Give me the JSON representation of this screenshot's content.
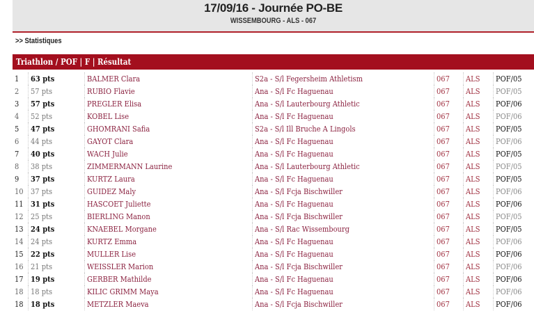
{
  "header": {
    "title": "17/09/16 - Journée PO-BE",
    "subtitle": "WISSEMBOURG - ALS - 067"
  },
  "breadcrumb": ">> Statistiques",
  "section_title": "Triathlon / POF | F | Résultat",
  "colors": {
    "accent": "#a30f1e",
    "name_text": "#8b2240"
  },
  "rows": [
    {
      "rank": "1",
      "pts": "63 pts",
      "name": "BALMER Clara",
      "club": "S2a - S/l Fegersheim Athletism",
      "dep": "067",
      "reg": "ALS",
      "cat": "POF/05"
    },
    {
      "rank": "2",
      "pts": "57 pts",
      "name": "RUBIO Flavie",
      "club": "Ana - S/l Fc Haguenau",
      "dep": "067",
      "reg": "ALS",
      "cat": "POF/05"
    },
    {
      "rank": "3",
      "pts": "57 pts",
      "name": "PREGLER Elisa",
      "club": "Ana - S/l Lauterbourg Athletic",
      "dep": "067",
      "reg": "ALS",
      "cat": "POF/06"
    },
    {
      "rank": "4",
      "pts": "52 pts",
      "name": "KOBEL Lise",
      "club": "Ana - S/l Fc Haguenau",
      "dep": "067",
      "reg": "ALS",
      "cat": "POF/06"
    },
    {
      "rank": "5",
      "pts": "47 pts",
      "name": "GHOMRANI Safia",
      "club": "S2a - S/l Ill Bruche A Lingols",
      "dep": "067",
      "reg": "ALS",
      "cat": "POF/05"
    },
    {
      "rank": "6",
      "pts": "44 pts",
      "name": "GAYOT Clara",
      "club": "Ana - S/l Fc Haguenau",
      "dep": "067",
      "reg": "ALS",
      "cat": "POF/06"
    },
    {
      "rank": "7",
      "pts": "40 pts",
      "name": "WACH Julie",
      "club": "Ana - S/l Fc Haguenau",
      "dep": "067",
      "reg": "ALS",
      "cat": "POF/05"
    },
    {
      "rank": "8",
      "pts": "38 pts",
      "name": "ZIMMERMANN Laurine",
      "club": "Ana - S/l Lauterbourg Athletic",
      "dep": "067",
      "reg": "ALS",
      "cat": "POF/05"
    },
    {
      "rank": "9",
      "pts": "37 pts",
      "name": "KURTZ Laura",
      "club": "Ana - S/l Fc Haguenau",
      "dep": "067",
      "reg": "ALS",
      "cat": "POF/05"
    },
    {
      "rank": "10",
      "pts": "37 pts",
      "name": "GUIDEZ Maly",
      "club": "Ana - S/l Fcja Bischwiller",
      "dep": "067",
      "reg": "ALS",
      "cat": "POF/06"
    },
    {
      "rank": "11",
      "pts": "31 pts",
      "name": "HASCOET Juliette",
      "club": "Ana - S/l Fc Haguenau",
      "dep": "067",
      "reg": "ALS",
      "cat": "POF/06"
    },
    {
      "rank": "12",
      "pts": "25 pts",
      "name": "BIERLING Manon",
      "club": "Ana - S/l Fcja Bischwiller",
      "dep": "067",
      "reg": "ALS",
      "cat": "POF/05"
    },
    {
      "rank": "13",
      "pts": "24 pts",
      "name": "KNAEBEL Morgane",
      "club": "Ana - S/l Rac Wissembourg",
      "dep": "067",
      "reg": "ALS",
      "cat": "POF/05"
    },
    {
      "rank": "14",
      "pts": "24 pts",
      "name": "KURTZ Emma",
      "club": "Ana - S/l Fc Haguenau",
      "dep": "067",
      "reg": "ALS",
      "cat": "POF/06"
    },
    {
      "rank": "15",
      "pts": "22 pts",
      "name": "MULLER Lise",
      "club": "Ana - S/l Fc Haguenau",
      "dep": "067",
      "reg": "ALS",
      "cat": "POF/06"
    },
    {
      "rank": "16",
      "pts": "21 pts",
      "name": "WEISSLER Marion",
      "club": "Ana - S/l Fcja Bischwiller",
      "dep": "067",
      "reg": "ALS",
      "cat": "POF/06"
    },
    {
      "rank": "17",
      "pts": "19 pts",
      "name": "GERBER Mathilde",
      "club": "Ana - S/l Fc Haguenau",
      "dep": "067",
      "reg": "ALS",
      "cat": "POF/06"
    },
    {
      "rank": "18",
      "pts": "18 pts",
      "name": "KILIC GRIMM Maya",
      "club": "Ana - S/l Fc Haguenau",
      "dep": "067",
      "reg": "ALS",
      "cat": "POF/06"
    },
    {
      "rank": "18",
      "pts": "18 pts",
      "name": "METZLER Maeva",
      "club": "Ana - S/l Fcja Bischwiller",
      "dep": "067",
      "reg": "ALS",
      "cat": "POF/06"
    }
  ]
}
